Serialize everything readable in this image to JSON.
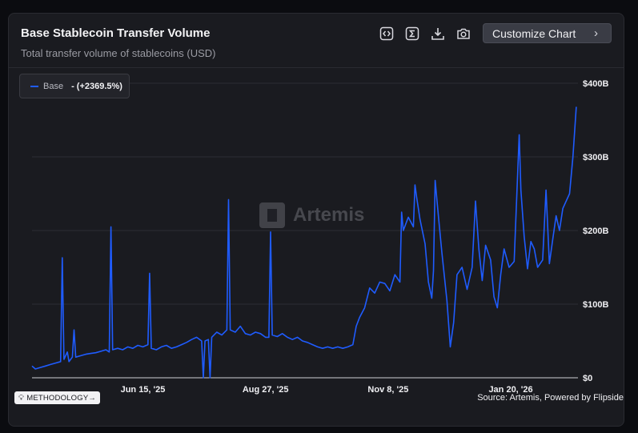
{
  "header": {
    "title": "Base Stablecoin Transfer Volume",
    "subtitle": "Total transfer volume of stablecoins (USD)",
    "customize_label": "Customize Chart",
    "icons": [
      "code-embed-icon",
      "sigma-icon",
      "download-icon",
      "camera-icon"
    ]
  },
  "legend": {
    "series_name": "Base",
    "change": "- (+2369.5%)",
    "color": "#1f5cff"
  },
  "watermark": "Artemis",
  "footer": {
    "methodology": "METHODOLOGY",
    "source": "Source: Artemis, Powered by Flipside"
  },
  "chart_data": {
    "type": "line",
    "title": "Base Stablecoin Transfer Volume",
    "subtitle": "Total transfer volume of stablecoins (USD)",
    "y_tick_labels": [
      "$0",
      "$100B",
      "$200B",
      "$300B",
      "$400B"
    ],
    "x_tick_labels": [
      "Jun 15, '25",
      "Aug 27, '25",
      "Nov 8, '25",
      "Jan 20, '26"
    ],
    "ylim": [
      0,
      400
    ],
    "y_unit": "billions USD",
    "x_range": [
      "2025-04-10",
      "2026-03-01"
    ],
    "grid": true,
    "legend_position": "top-left",
    "series": [
      {
        "name": "Base",
        "color": "#1f5cff",
        "points": [
          [
            "2025-04-10",
            16
          ],
          [
            "2025-04-12",
            12
          ],
          [
            "2025-04-15",
            14
          ],
          [
            "2025-04-18",
            16
          ],
          [
            "2025-04-21",
            18
          ],
          [
            "2025-04-24",
            20
          ],
          [
            "2025-04-27",
            22
          ],
          [
            "2025-04-28",
            163
          ],
          [
            "2025-04-29",
            25
          ],
          [
            "2025-05-01",
            35
          ],
          [
            "2025-05-02",
            22
          ],
          [
            "2025-05-04",
            28
          ],
          [
            "2025-05-05",
            65
          ],
          [
            "2025-05-06",
            28
          ],
          [
            "2025-05-09",
            30
          ],
          [
            "2025-05-12",
            32
          ],
          [
            "2025-05-15",
            33
          ],
          [
            "2025-05-18",
            34
          ],
          [
            "2025-05-21",
            36
          ],
          [
            "2025-05-24",
            38
          ],
          [
            "2025-05-26",
            35
          ],
          [
            "2025-05-27",
            205
          ],
          [
            "2025-05-28",
            38
          ],
          [
            "2025-05-31",
            40
          ],
          [
            "2025-06-03",
            38
          ],
          [
            "2025-06-06",
            42
          ],
          [
            "2025-06-09",
            40
          ],
          [
            "2025-06-12",
            44
          ],
          [
            "2025-06-15",
            42
          ],
          [
            "2025-06-18",
            45
          ],
          [
            "2025-06-19",
            142
          ],
          [
            "2025-06-20",
            40
          ],
          [
            "2025-06-23",
            38
          ],
          [
            "2025-06-26",
            42
          ],
          [
            "2025-06-29",
            44
          ],
          [
            "2025-07-02",
            40
          ],
          [
            "2025-07-05",
            42
          ],
          [
            "2025-07-08",
            45
          ],
          [
            "2025-07-11",
            48
          ],
          [
            "2025-07-14",
            52
          ],
          [
            "2025-07-17",
            55
          ],
          [
            "2025-07-20",
            50
          ],
          [
            "2025-07-21",
            0
          ],
          [
            "2025-07-22",
            50
          ],
          [
            "2025-07-24",
            52
          ],
          [
            "2025-07-25",
            0
          ],
          [
            "2025-07-26",
            55
          ],
          [
            "2025-07-29",
            62
          ],
          [
            "2025-08-01",
            58
          ],
          [
            "2025-08-04",
            65
          ],
          [
            "2025-08-05",
            242
          ],
          [
            "2025-08-06",
            65
          ],
          [
            "2025-08-09",
            62
          ],
          [
            "2025-08-12",
            70
          ],
          [
            "2025-08-15",
            60
          ],
          [
            "2025-08-18",
            58
          ],
          [
            "2025-08-21",
            62
          ],
          [
            "2025-08-24",
            60
          ],
          [
            "2025-08-27",
            55
          ],
          [
            "2025-08-29",
            55
          ],
          [
            "2025-08-30",
            198
          ],
          [
            "2025-08-31",
            58
          ],
          [
            "2025-09-03",
            56
          ],
          [
            "2025-09-06",
            60
          ],
          [
            "2025-09-09",
            55
          ],
          [
            "2025-09-12",
            52
          ],
          [
            "2025-09-15",
            55
          ],
          [
            "2025-09-18",
            50
          ],
          [
            "2025-09-21",
            48
          ],
          [
            "2025-09-24",
            45
          ],
          [
            "2025-09-27",
            42
          ],
          [
            "2025-09-30",
            40
          ],
          [
            "2025-10-03",
            42
          ],
          [
            "2025-10-06",
            40
          ],
          [
            "2025-10-09",
            42
          ],
          [
            "2025-10-12",
            40
          ],
          [
            "2025-10-15",
            42
          ],
          [
            "2025-10-18",
            45
          ],
          [
            "2025-10-20",
            70
          ],
          [
            "2025-10-22",
            82
          ],
          [
            "2025-10-25",
            95
          ],
          [
            "2025-10-28",
            122
          ],
          [
            "2025-10-31",
            115
          ],
          [
            "2025-11-03",
            130
          ],
          [
            "2025-11-06",
            128
          ],
          [
            "2025-11-09",
            118
          ],
          [
            "2025-11-12",
            140
          ],
          [
            "2025-11-15",
            130
          ],
          [
            "2025-11-16",
            225
          ],
          [
            "2025-11-17",
            200
          ],
          [
            "2025-11-20",
            218
          ],
          [
            "2025-11-23",
            205
          ],
          [
            "2025-11-24",
            262
          ],
          [
            "2025-11-25",
            245
          ],
          [
            "2025-11-27",
            215
          ],
          [
            "2025-11-30",
            182
          ],
          [
            "2025-12-02",
            130
          ],
          [
            "2025-12-04",
            108
          ],
          [
            "2025-12-05",
            145
          ],
          [
            "2025-12-06",
            268
          ],
          [
            "2025-12-08",
            218
          ],
          [
            "2025-12-10",
            170
          ],
          [
            "2025-12-13",
            105
          ],
          [
            "2025-12-15",
            42
          ],
          [
            "2025-12-17",
            75
          ],
          [
            "2025-12-19",
            140
          ],
          [
            "2025-12-22",
            150
          ],
          [
            "2025-12-25",
            120
          ],
          [
            "2025-12-28",
            150
          ],
          [
            "2025-12-30",
            240
          ],
          [
            "2026-01-01",
            175
          ],
          [
            "2026-01-03",
            132
          ],
          [
            "2026-01-05",
            180
          ],
          [
            "2026-01-08",
            160
          ],
          [
            "2026-01-10",
            110
          ],
          [
            "2026-01-12",
            95
          ],
          [
            "2026-01-14",
            140
          ],
          [
            "2026-01-16",
            175
          ],
          [
            "2026-01-19",
            150
          ],
          [
            "2026-01-22",
            158
          ],
          [
            "2026-01-25",
            330
          ],
          [
            "2026-01-26",
            255
          ],
          [
            "2026-01-28",
            192
          ],
          [
            "2026-01-30",
            148
          ],
          [
            "2026-02-01",
            185
          ],
          [
            "2026-02-03",
            175
          ],
          [
            "2026-02-05",
            150
          ],
          [
            "2026-02-08",
            160
          ],
          [
            "2026-02-10",
            255
          ],
          [
            "2026-02-12",
            155
          ],
          [
            "2026-02-14",
            188
          ],
          [
            "2026-02-16",
            220
          ],
          [
            "2026-02-18",
            200
          ],
          [
            "2026-02-20",
            230
          ],
          [
            "2026-02-22",
            240
          ],
          [
            "2026-02-24",
            250
          ],
          [
            "2026-02-26",
            300
          ],
          [
            "2026-02-28",
            368
          ]
        ]
      }
    ]
  }
}
